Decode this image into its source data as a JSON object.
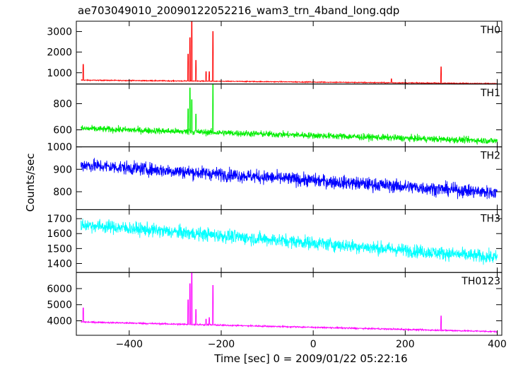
{
  "chart_data": {
    "type": "line",
    "title": "ae703049010_20090122052216_wam3_trn_4band_long.qdp",
    "xlabel": "Time [sec] 0 = 2009/01/22 05:22:16",
    "ylabel": "Counts/sec",
    "xlim": [
      -515,
      410
    ],
    "xticks": [
      -400,
      -200,
      0,
      200,
      400
    ],
    "panels": [
      {
        "name": "TH0",
        "color": "#ff0000",
        "ylim": [
          450,
          3500
        ],
        "yticks": [
          1000,
          2000,
          3000
        ],
        "baseline_start": 640,
        "baseline_end": 470,
        "noise": 22,
        "spikes": [
          [
            -500,
            1400
          ],
          [
            -272,
            1900
          ],
          [
            -268,
            2700
          ],
          [
            -264,
            3500
          ],
          [
            -255,
            1600
          ],
          [
            -233,
            1050
          ],
          [
            -226,
            1050
          ],
          [
            -218,
            3000
          ],
          [
            170,
            700
          ],
          [
            278,
            1280
          ]
        ]
      },
      {
        "name": "TH1",
        "color": "#00ee00",
        "ylim": [
          470,
          950
        ],
        "yticks": [
          600,
          800
        ],
        "baseline_start": 610,
        "baseline_end": 515,
        "noise": 25,
        "spikes": [
          [
            -272,
            760
          ],
          [
            -268,
            920
          ],
          [
            -264,
            830
          ],
          [
            -218,
            950
          ],
          [
            -255,
            720
          ]
        ]
      },
      {
        "name": "TH2",
        "color": "#0000ff",
        "ylim": [
          720,
          1000
        ],
        "yticks": [
          800,
          900,
          1000
        ],
        "baseline_start": 920,
        "baseline_end": 795,
        "noise": 30,
        "spikes": []
      },
      {
        "name": "TH3",
        "color": "#00ffff",
        "ylim": [
          1340,
          1760
        ],
        "yticks": [
          1400,
          1500,
          1600,
          1700
        ],
        "baseline_start": 1660,
        "baseline_end": 1440,
        "noise": 45,
        "spikes": []
      },
      {
        "name": "TH0123",
        "color": "#ff00ff",
        "ylim": [
          3100,
          7000
        ],
        "yticks": [
          4000,
          5000,
          6000
        ],
        "baseline_start": 3930,
        "baseline_end": 3330,
        "noise": 45,
        "spikes": [
          [
            -500,
            4800
          ],
          [
            -272,
            5300
          ],
          [
            -268,
            6300
          ],
          [
            -264,
            7000
          ],
          [
            -255,
            4700
          ],
          [
            -233,
            4100
          ],
          [
            -226,
            4200
          ],
          [
            -218,
            6200
          ],
          [
            278,
            4300
          ]
        ]
      }
    ]
  }
}
